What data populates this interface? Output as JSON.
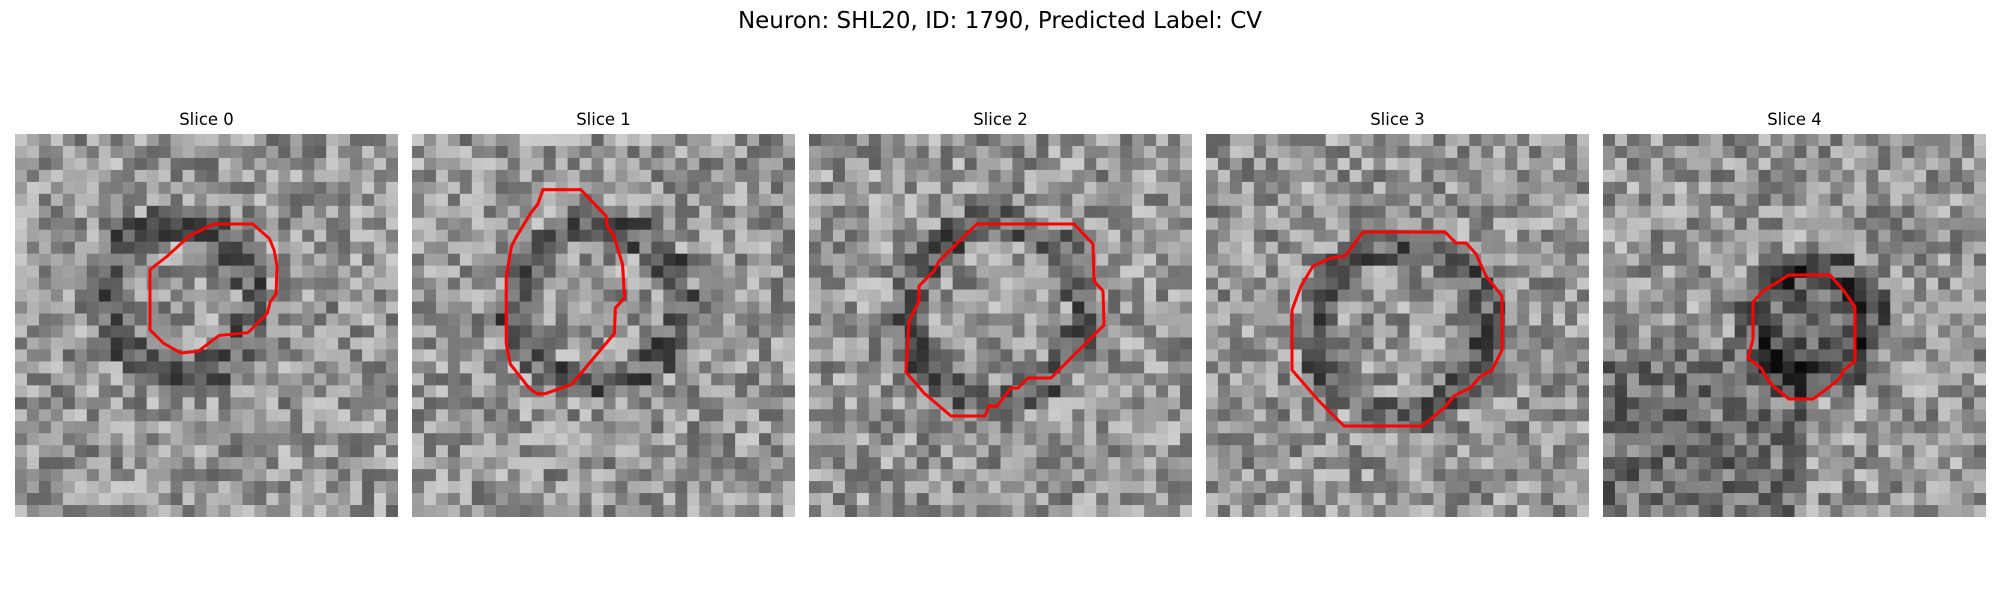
{
  "figure": {
    "title": "Neuron: SHL20, ID: 1790, Predicted Label: CV",
    "contour_color": "#ff0000"
  },
  "panels": [
    {
      "title": "Slice 0"
    },
    {
      "title": "Slice 1"
    },
    {
      "title": "Slice 2"
    },
    {
      "title": "Slice 3"
    },
    {
      "title": "Slice 4"
    }
  ]
}
